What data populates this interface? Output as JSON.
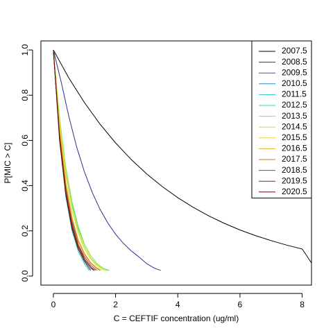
{
  "chart_data": {
    "type": "line",
    "xlabel": "C = CEFTIF concentration (ug/ml)",
    "ylabel": "P[MIC > C]",
    "xlim": [
      -0.4,
      8.3
    ],
    "ylim": [
      -0.04,
      1.04
    ],
    "xticks": [
      0,
      2,
      4,
      6,
      8
    ],
    "yticks": [
      0.0,
      0.2,
      0.4,
      0.6,
      0.8,
      1.0
    ],
    "xtick_labels": [
      "0",
      "2",
      "4",
      "6",
      "8"
    ],
    "ytick_labels": [
      "0.0",
      "0.2",
      "0.4",
      "0.6",
      "0.8",
      "1.0"
    ],
    "grid": false,
    "legend_position": "top-right",
    "series": [
      {
        "name": "2007.5",
        "color": "#000000",
        "x": [
          0,
          0.5,
          1,
          1.5,
          2,
          2.5,
          3,
          3.5,
          4,
          4.5,
          5,
          5.5,
          6,
          6.5,
          7,
          7.5,
          8,
          8.3
        ],
        "y": [
          1.0,
          0.876,
          0.767,
          0.672,
          0.589,
          0.516,
          0.452,
          0.396,
          0.347,
          0.304,
          0.266,
          0.233,
          0.204,
          0.179,
          0.157,
          0.137,
          0.12,
          0.058
        ]
      },
      {
        "name": "2008.5",
        "color": "#2c2c8c",
        "x": [
          0,
          0.25,
          0.5,
          0.75,
          1,
          1.25,
          1.5,
          1.75,
          2,
          2.25,
          2.5,
          2.75,
          3,
          3.25,
          3.45
        ],
        "y": [
          1.0,
          0.86,
          0.705,
          0.57,
          0.46,
          0.37,
          0.295,
          0.235,
          0.185,
          0.145,
          0.112,
          0.085,
          0.055,
          0.035,
          0.025
        ]
      },
      {
        "name": "2009.5",
        "color": "#3a4fc8",
        "x": [
          0,
          0.2,
          0.4,
          0.6,
          0.8,
          1.0,
          1.2,
          1.35
        ],
        "y": [
          1.0,
          0.64,
          0.4,
          0.24,
          0.14,
          0.075,
          0.04,
          0.025
        ]
      },
      {
        "name": "2010.5",
        "color": "#1e8fd2",
        "x": [
          0,
          0.2,
          0.4,
          0.6,
          0.8,
          1.0,
          1.2,
          1.3
        ],
        "y": [
          1.0,
          0.62,
          0.38,
          0.23,
          0.13,
          0.07,
          0.035,
          0.025
        ]
      },
      {
        "name": "2011.5",
        "color": "#19c8c8",
        "x": [
          0,
          0.2,
          0.4,
          0.6,
          0.8,
          1.0,
          1.15
        ],
        "y": [
          1.0,
          0.6,
          0.35,
          0.2,
          0.11,
          0.055,
          0.025
        ]
      },
      {
        "name": "2012.5",
        "color": "#33d6a6",
        "x": [
          0,
          0.2,
          0.4,
          0.6,
          0.8,
          1.0,
          1.2,
          1.4,
          1.6,
          1.8
        ],
        "y": [
          1.0,
          0.69,
          0.47,
          0.32,
          0.21,
          0.14,
          0.09,
          0.055,
          0.035,
          0.025
        ]
      },
      {
        "name": "2013.5",
        "color": "#8ce650",
        "x": [
          0,
          0.2,
          0.4,
          0.6,
          0.8,
          1.0,
          1.2,
          1.4,
          1.6,
          1.75
        ],
        "y": [
          1.0,
          0.7,
          0.48,
          0.33,
          0.22,
          0.14,
          0.09,
          0.055,
          0.035,
          0.025
        ]
      },
      {
        "name": "2014.5",
        "color": "#c8e632",
        "x": [
          0,
          0.2,
          0.4,
          0.6,
          0.8,
          1.0,
          1.2,
          1.4,
          1.6,
          1.7
        ],
        "y": [
          1.0,
          0.68,
          0.46,
          0.31,
          0.2,
          0.13,
          0.08,
          0.05,
          0.032,
          0.025
        ]
      },
      {
        "name": "2015.5",
        "color": "#e6d23c",
        "x": [
          0,
          0.2,
          0.4,
          0.6,
          0.8,
          1.0,
          1.2,
          1.4,
          1.6,
          1.65
        ],
        "y": [
          1.0,
          0.66,
          0.44,
          0.29,
          0.19,
          0.12,
          0.075,
          0.045,
          0.028,
          0.025
        ]
      },
      {
        "name": "2016.5",
        "color": "#e6aa28",
        "x": [
          0,
          0.2,
          0.4,
          0.6,
          0.8,
          1.0,
          1.2,
          1.4,
          1.55
        ],
        "y": [
          1.0,
          0.64,
          0.41,
          0.26,
          0.16,
          0.1,
          0.06,
          0.036,
          0.025
        ]
      },
      {
        "name": "2017.5",
        "color": "#d27814",
        "x": [
          0,
          0.2,
          0.4,
          0.6,
          0.8,
          1.0,
          1.2,
          1.4,
          1.5
        ],
        "y": [
          1.0,
          0.63,
          0.4,
          0.25,
          0.155,
          0.095,
          0.057,
          0.033,
          0.025
        ]
      },
      {
        "name": "2018.5",
        "color": "#b4460a",
        "x": [
          0,
          0.2,
          0.4,
          0.6,
          0.8,
          1.0,
          1.2,
          1.4
        ],
        "y": [
          1.0,
          0.62,
          0.38,
          0.23,
          0.14,
          0.085,
          0.048,
          0.025
        ]
      },
      {
        "name": "2019.5",
        "color": "#961e0a",
        "x": [
          0,
          0.2,
          0.4,
          0.6,
          0.8,
          1.0,
          1.2,
          1.3
        ],
        "y": [
          1.0,
          0.61,
          0.37,
          0.22,
          0.13,
          0.075,
          0.04,
          0.025
        ]
      },
      {
        "name": "2020.5",
        "color": "#640a0a",
        "x": [
          0,
          0.2,
          0.4,
          0.6,
          0.8,
          1.0,
          1.2
        ],
        "y": [
          1.0,
          0.6,
          0.36,
          0.21,
          0.12,
          0.065,
          0.025
        ]
      }
    ]
  }
}
